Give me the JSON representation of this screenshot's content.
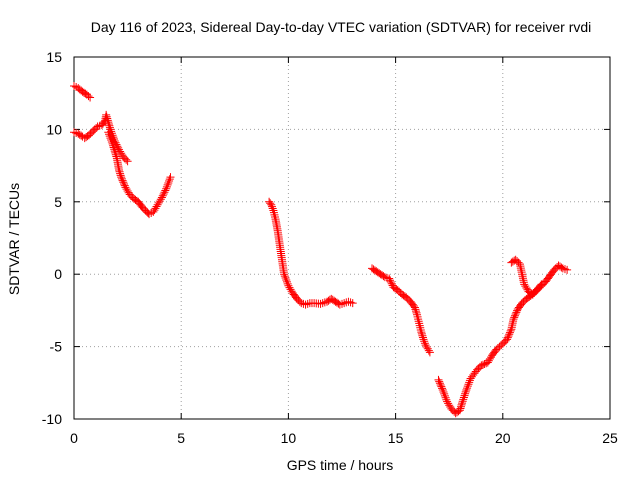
{
  "chart_data": {
    "type": "scatter",
    "title": "Day 116 of 2023, Sidereal Day-to-day VTEC variation (SDTVAR) for receiver rvdi",
    "xlabel": "GPS time / hours",
    "ylabel": "SDTVAR / TECUs",
    "xlim": [
      0,
      25
    ],
    "ylim": [
      -10,
      15
    ],
    "xticks": [
      "0",
      "5",
      "10",
      "15",
      "20",
      "25"
    ],
    "yticks": [
      "15",
      "10",
      "5",
      "0",
      "-5",
      "-10"
    ],
    "grid": true,
    "marker": "plus",
    "color": "#ff0000",
    "series": [
      {
        "points": [
          [
            0.0,
            13.0
          ],
          [
            0.2,
            12.85
          ],
          [
            0.4,
            12.6
          ],
          [
            0.6,
            12.4
          ],
          [
            0.75,
            12.2
          ]
        ]
      },
      {
        "points": [
          [
            0.0,
            9.8
          ],
          [
            0.2,
            9.7
          ],
          [
            0.4,
            9.5
          ],
          [
            0.5,
            9.4
          ],
          [
            0.7,
            9.6
          ],
          [
            0.9,
            9.9
          ],
          [
            1.1,
            10.2
          ],
          [
            1.3,
            10.3
          ],
          [
            1.45,
            10.6
          ],
          [
            1.5,
            11.0
          ],
          [
            1.6,
            10.5
          ],
          [
            1.7,
            10.0
          ],
          [
            1.9,
            9.2
          ],
          [
            2.1,
            8.6
          ],
          [
            2.3,
            8.1
          ],
          [
            2.5,
            7.8
          ]
        ]
      },
      {
        "points": [
          [
            1.6,
            9.8
          ],
          [
            1.8,
            9.0
          ],
          [
            2.0,
            8.0
          ],
          [
            2.1,
            7.2
          ],
          [
            2.2,
            6.7
          ],
          [
            2.4,
            6.0
          ],
          [
            2.6,
            5.5
          ],
          [
            2.8,
            5.2
          ],
          [
            3.0,
            5.0
          ],
          [
            3.2,
            4.6
          ],
          [
            3.4,
            4.3
          ],
          [
            3.5,
            4.15
          ],
          [
            3.7,
            4.3
          ],
          [
            3.9,
            4.8
          ],
          [
            4.1,
            5.3
          ],
          [
            4.3,
            5.9
          ],
          [
            4.5,
            6.7
          ]
        ]
      },
      {
        "points": [
          [
            9.1,
            5.0
          ],
          [
            9.2,
            4.8
          ],
          [
            9.3,
            4.4
          ],
          [
            9.4,
            3.8
          ],
          [
            9.5,
            3.0
          ],
          [
            9.6,
            2.0
          ],
          [
            9.7,
            1.0
          ],
          [
            9.8,
            0.0
          ],
          [
            10.0,
            -0.8
          ],
          [
            10.2,
            -1.3
          ],
          [
            10.4,
            -1.7
          ],
          [
            10.6,
            -2.0
          ],
          [
            10.8,
            -2.1
          ],
          [
            11.0,
            -2.0
          ],
          [
            11.2,
            -2.0
          ],
          [
            11.5,
            -2.05
          ],
          [
            11.8,
            -1.9
          ],
          [
            12.0,
            -1.7
          ],
          [
            12.2,
            -1.9
          ],
          [
            12.4,
            -2.1
          ],
          [
            12.6,
            -2.0
          ],
          [
            12.8,
            -1.9
          ],
          [
            13.0,
            -2.0
          ]
        ]
      },
      {
        "points": [
          [
            13.9,
            0.4
          ],
          [
            14.1,
            0.2
          ],
          [
            14.3,
            0.0
          ],
          [
            14.5,
            -0.2
          ],
          [
            14.7,
            -0.3
          ],
          [
            14.9,
            -0.9
          ],
          [
            15.1,
            -1.1
          ],
          [
            15.3,
            -1.4
          ],
          [
            15.5,
            -1.6
          ],
          [
            15.7,
            -1.9
          ],
          [
            15.9,
            -2.3
          ],
          [
            16.0,
            -2.8
          ],
          [
            16.1,
            -3.4
          ],
          [
            16.2,
            -4.0
          ],
          [
            16.3,
            -4.5
          ],
          [
            16.4,
            -4.9
          ],
          [
            16.6,
            -5.4
          ]
        ]
      },
      {
        "points": [
          [
            17.0,
            -7.3
          ],
          [
            17.2,
            -8.0
          ],
          [
            17.4,
            -8.8
          ],
          [
            17.6,
            -9.3
          ],
          [
            17.8,
            -9.6
          ],
          [
            18.0,
            -9.4
          ],
          [
            18.1,
            -8.9
          ],
          [
            18.3,
            -8.0
          ],
          [
            18.5,
            -7.2
          ],
          [
            18.8,
            -6.6
          ],
          [
            19.0,
            -6.3
          ],
          [
            19.3,
            -6.1
          ],
          [
            19.5,
            -5.6
          ],
          [
            19.7,
            -5.2
          ],
          [
            20.0,
            -4.8
          ],
          [
            20.2,
            -4.5
          ],
          [
            20.4,
            -3.8
          ],
          [
            20.5,
            -3.1
          ],
          [
            20.7,
            -2.4
          ],
          [
            20.9,
            -2.0
          ],
          [
            21.1,
            -1.7
          ],
          [
            21.3,
            -1.5
          ],
          [
            21.5,
            -1.2
          ],
          [
            21.8,
            -0.8
          ],
          [
            22.0,
            -0.5
          ],
          [
            22.2,
            -0.1
          ],
          [
            22.4,
            0.3
          ],
          [
            22.6,
            0.6
          ],
          [
            22.8,
            0.4
          ],
          [
            23.0,
            0.3
          ]
        ]
      },
      {
        "points": [
          [
            20.4,
            0.8
          ],
          [
            20.6,
            1.0
          ],
          [
            20.8,
            0.7
          ],
          [
            20.9,
            0.0
          ],
          [
            21.0,
            -0.7
          ],
          [
            21.2,
            -1.2
          ],
          [
            21.4,
            -1.4
          ],
          [
            21.6,
            -1.1
          ],
          [
            21.8,
            -0.7
          ]
        ]
      }
    ]
  }
}
